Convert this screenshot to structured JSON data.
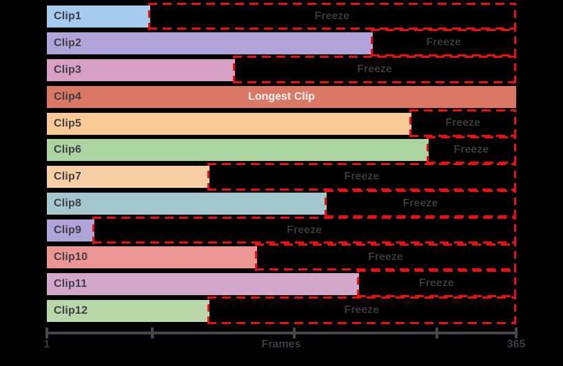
{
  "figure": {
    "background": "#000000",
    "accent_red": "#f50d0d",
    "axis_color": "#48484c",
    "axis_text_color": "#3e3e42"
  },
  "axis": {
    "label": "Frames",
    "min_label": "1",
    "max_label": "365",
    "tick_positions_pct": [
      0,
      22.5,
      52.7,
      83.1,
      100
    ]
  },
  "chart_data": {
    "type": "bar",
    "orientation": "horizontal",
    "title": "",
    "xlabel": "Frames",
    "xlim": [
      1,
      365
    ],
    "x_tick_labels_visible": [
      "1",
      "365"
    ],
    "grid": false,
    "legend": false,
    "freeze_label": "Freeze",
    "freeze_region_end_frame": 365,
    "categories": [
      "Clip1",
      "Clip2",
      "Clip3",
      "Clip4",
      "Clip5",
      "Clip6",
      "Clip7",
      "Clip8",
      "Clip9",
      "Clip10",
      "Clip11",
      "Clip12"
    ],
    "series": [
      {
        "name": "clip_length_frames",
        "values": [
          81,
          254,
          147,
          365,
          284,
          297,
          127,
          218,
          38,
          164,
          243,
          127
        ]
      }
    ],
    "clips": [
      {
        "name": "Clip1",
        "length_frames": 81,
        "color": "#a5cbee",
        "freeze": true,
        "annotation": ""
      },
      {
        "name": "Clip2",
        "length_frames": 254,
        "color": "#afa5da",
        "freeze": true,
        "annotation": ""
      },
      {
        "name": "Clip3",
        "length_frames": 147,
        "color": "#d8a0c4",
        "freeze": true,
        "annotation": ""
      },
      {
        "name": "Clip4",
        "length_frames": 365,
        "color": "#db7765",
        "freeze": false,
        "annotation": "Longest Clip"
      },
      {
        "name": "Clip5",
        "length_frames": 284,
        "color": "#faca96",
        "freeze": true,
        "annotation": ""
      },
      {
        "name": "Clip6",
        "length_frames": 297,
        "color": "#abd4a0",
        "freeze": true,
        "annotation": ""
      },
      {
        "name": "Clip7",
        "length_frames": 127,
        "color": "#f8cea4",
        "freeze": true,
        "annotation": ""
      },
      {
        "name": "Clip8",
        "length_frames": 218,
        "color": "#a5c8ce",
        "freeze": true,
        "annotation": ""
      },
      {
        "name": "Clip9",
        "length_frames": 38,
        "color": "#afa5da",
        "freeze": true,
        "annotation": ""
      },
      {
        "name": "Clip10",
        "length_frames": 164,
        "color": "#ec9694",
        "freeze": true,
        "annotation": ""
      },
      {
        "name": "Clip11",
        "length_frames": 243,
        "color": "#d3a7c9",
        "freeze": true,
        "annotation": ""
      },
      {
        "name": "Clip12",
        "length_frames": 127,
        "color": "#b9d8a9",
        "freeze": true,
        "annotation": ""
      }
    ]
  }
}
